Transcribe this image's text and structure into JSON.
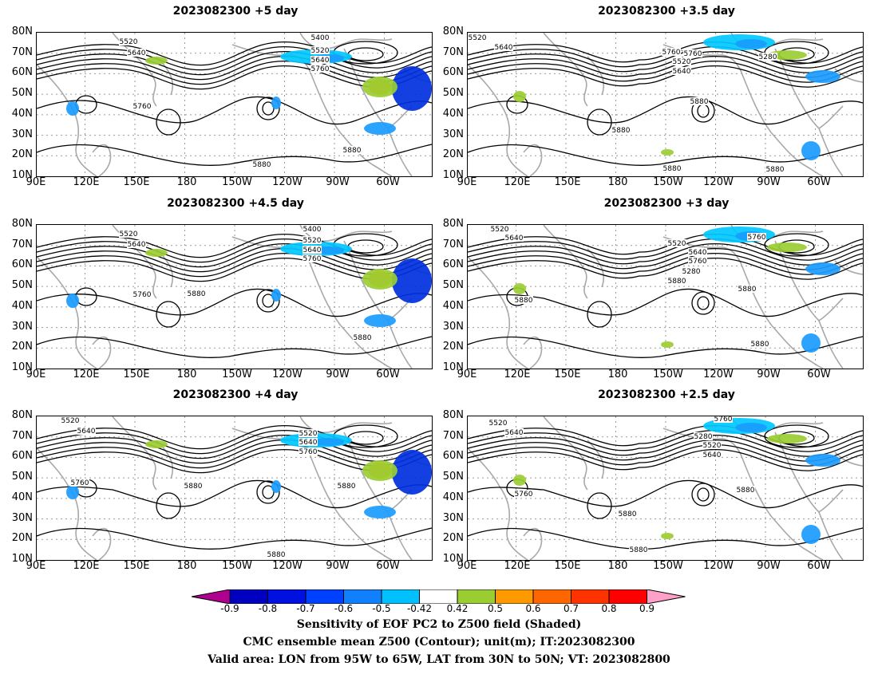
{
  "panels": [
    {
      "title": "2023082300 +5 day",
      "labels": [
        "5520",
        "5640",
        "5400",
        "5520",
        "5640",
        "5760",
        "5760",
        "5880",
        "5880"
      ]
    },
    {
      "title": "2023082300 +3.5 day",
      "labels": [
        "5520",
        "5640",
        "5760",
        "5520",
        "5640",
        "5760",
        "5280",
        "5880",
        "5880",
        "5880",
        "5880",
        "5880"
      ]
    },
    {
      "title": "2023082300 +4.5 day",
      "labels": [
        "5520",
        "5640",
        "5400",
        "5520",
        "5640",
        "5760",
        "5760",
        "5880",
        "5880"
      ]
    },
    {
      "title": "2023082300 +3 day",
      "labels": [
        "5520",
        "5640",
        "5520",
        "5640",
        "5760",
        "5280",
        "5760",
        "5880",
        "5880",
        "5880",
        "5880"
      ]
    },
    {
      "title": "2023082300 +4 day",
      "labels": [
        "5520",
        "5640",
        "5520",
        "5640",
        "5760",
        "5760",
        "5880",
        "5880",
        "5880"
      ]
    },
    {
      "title": "2023082300 +2.5 day",
      "labels": [
        "5520",
        "5640",
        "5280",
        "5520",
        "5640",
        "5760",
        "5760",
        "5880",
        "5880",
        "5880",
        "5880"
      ]
    }
  ],
  "y_axis_labels": [
    "80N",
    "70N",
    "60N",
    "50N",
    "40N",
    "30N",
    "20N",
    "10N"
  ],
  "x_axis_labels": [
    "90E",
    "120E",
    "150E",
    "180",
    "150W",
    "120W",
    "90W",
    "60W"
  ],
  "colorbar": {
    "ticks": [
      "-0.9",
      "-0.8",
      "-0.7",
      "-0.6",
      "-0.5",
      "-0.42",
      "0.42",
      "0.5",
      "0.6",
      "0.7",
      "0.8",
      "0.9"
    ],
    "colors": [
      "#b00090",
      "#0000c0",
      "#0010e0",
      "#0040ff",
      "#1080ff",
      "#00c0ff",
      "#ffffff",
      "#9acd32",
      "#ff9900",
      "#ff6600",
      "#ff3300",
      "#ff0000",
      "#ffa0c8"
    ]
  },
  "captions": {
    "line1": "Sensitivity of EOF PC2 to Z500 field (Shaded)",
    "line2": "CMC ensemble mean Z500 (Contour); unit(m); IT:2023082300",
    "line3": "Valid area: LON from 95W to 65W, LAT from 30N to 50N; VT: 2023082800"
  }
}
